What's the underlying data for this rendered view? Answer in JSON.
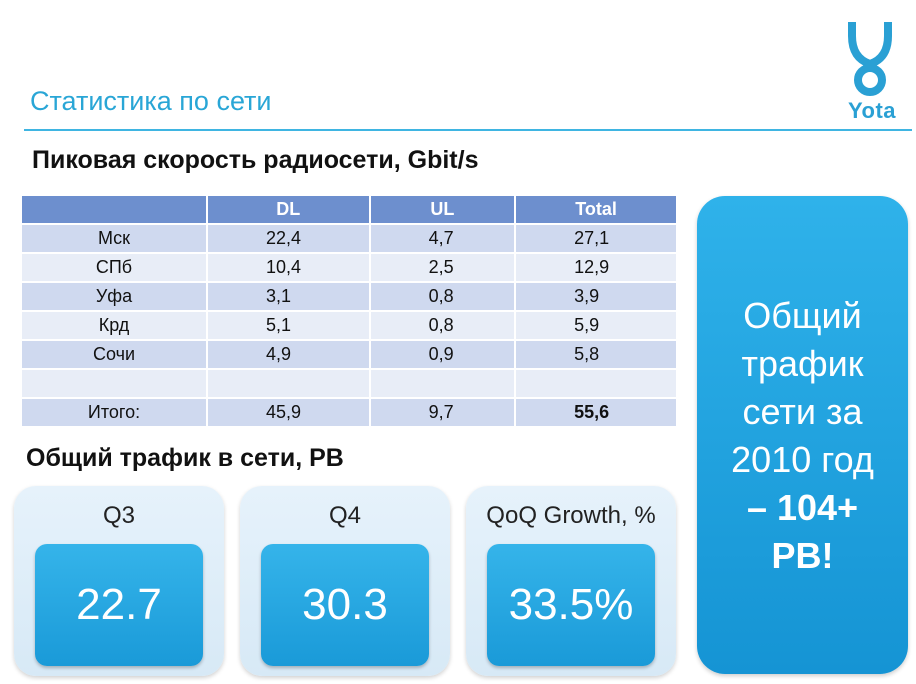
{
  "slide": {
    "title": "Статистика по сети",
    "logo_text": "Yota",
    "brand_color": "#29a6d6"
  },
  "peak_speed": {
    "heading": "Пиковая скорость радиосети, Gbit/s",
    "columns": [
      "",
      "DL",
      "UL",
      "Total"
    ],
    "rows": [
      {
        "city": "Мск",
        "dl": "22,4",
        "ul": "4,7",
        "total": "27,1"
      },
      {
        "city": "СПб",
        "dl": "10,4",
        "ul": "2,5",
        "total": "12,9"
      },
      {
        "city": "Уфа",
        "dl": "3,1",
        "ul": "0,8",
        "total": "3,9"
      },
      {
        "city": "Крд",
        "dl": "5,1",
        "ul": "0,8",
        "total": "5,9"
      },
      {
        "city": "Сочи",
        "dl": "4,9",
        "ul": "0,9",
        "total": "5,8"
      },
      {
        "city": "",
        "dl": "",
        "ul": "",
        "total": ""
      },
      {
        "city": "Итого:",
        "dl": "45,9",
        "ul": "9,7",
        "total": "55,6"
      }
    ]
  },
  "traffic": {
    "heading": "Общий трафик в сети, PB",
    "cards": [
      {
        "label": "Q3",
        "value": "22.7"
      },
      {
        "label": "Q4",
        "value": "30.3"
      },
      {
        "label": "QoQ Growth, %",
        "value": "33.5%"
      }
    ]
  },
  "side_panel": {
    "line1": "Общий",
    "line2": "трафик",
    "line3": "сети за",
    "line4": "2010 год",
    "line5": "– 104+",
    "line6": "PB!"
  }
}
